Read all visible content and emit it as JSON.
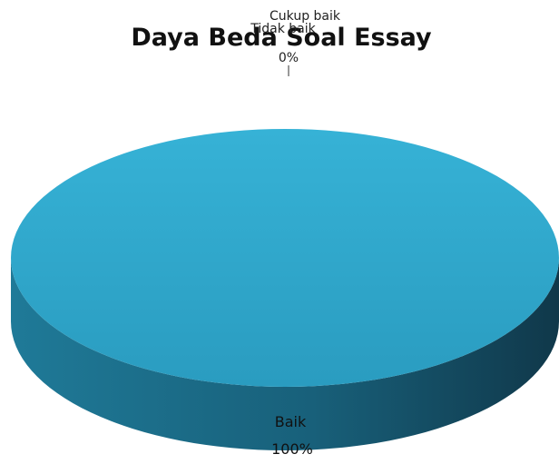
{
  "chart_data": {
    "type": "pie",
    "title": "Daya Beda Soal Essay",
    "categories": [
      "Baik",
      "Cukup baik",
      "Tidak baik"
    ],
    "values": [
      100,
      0,
      0
    ],
    "labels": [
      {
        "category": "Baik",
        "percent": "100%"
      },
      {
        "category": "Cukup baik",
        "percent": "0%"
      },
      {
        "category": "Tidak baik",
        "percent": "0%"
      }
    ],
    "style": "3d",
    "legend": "none",
    "colors": {
      "top": "#33acd0",
      "top_edge": "#2690b2",
      "side_light": "#1f7a98",
      "side_dark": "#123f52"
    }
  }
}
